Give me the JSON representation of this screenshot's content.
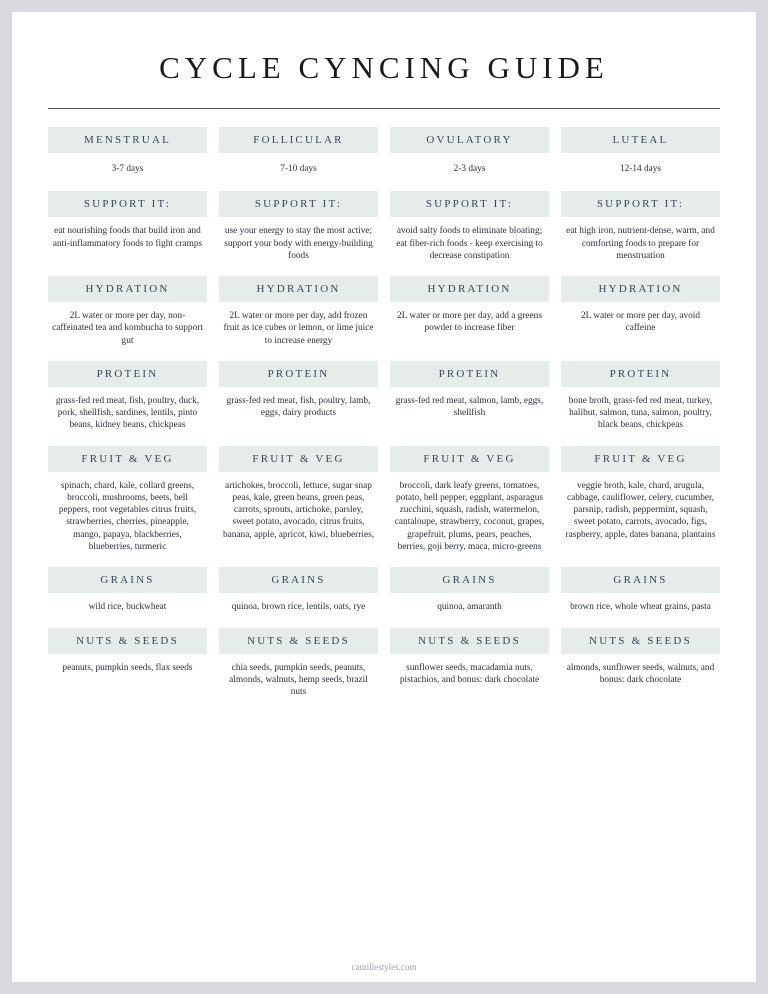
{
  "title": "CYCLE CYNCING GUIDE",
  "footer": "camillestyles.com",
  "phases": [
    "MENSTRUAL",
    "FOLLICULAR",
    "OVULATORY",
    "LUTEAL"
  ],
  "days": [
    "3-7 days",
    "7-10 days",
    "2-3 days",
    "12-14 days"
  ],
  "rows": [
    {
      "label": "SUPPORT IT:",
      "cells": [
        "eat nourishing foods that build iron and anti-inflammatory foods to fight cramps",
        "use your energy to stay the most active; support your body with energy-building foods",
        "avoid salty foods to eliminate bloating; eat fiber-rich foods - keep exercising to decrease constipation",
        "eat high iron, nutrient-dense, warm, and comforting foods to prepare for menstruation"
      ]
    },
    {
      "label": "HYDRATION",
      "cells": [
        "2L water or more per day, non-caffeinated tea and kombucha to support gut",
        "2L water or more per day, add frozen fruit as ice cubes or lemon, or lime juice to increase energy",
        "2L water or more per day, add a greens powder to increase fiber",
        "2L water or more per day, avoid caffeine"
      ]
    },
    {
      "label": "PROTEIN",
      "cells": [
        "grass-fed red meat, fish, poultry, duck, pork, shellfish, sardines, lentils, pinto beans, kidney beans, chickpeas",
        "grass-fed red meat, fish, poultry, lamb, eggs, dairy products",
        "grass-fed red meat, salmon, lamb, eggs, shellfish",
        "bone broth, grass-fed red meat, turkey, halibut, salmon, tuna, salmon, poultry, black beans, chickpeas"
      ]
    },
    {
      "label": "FRUIT & VEG",
      "cells": [
        "spinach, chard, kale, collard greens, broccoli, mushrooms, beets, bell peppers, root vegetables citrus fruits, strawberries, cherries, pineapple, mango, papaya, blackberries, blueberries, turmeric",
        "artichokes, broccoli, lettuce, sugar snap peas, kale, green beans, green peas, carrots, sprouts, artichoke, parsley, sweet potato, avocado, citrus fruits, banana, apple, apricot, kiwi, blueberries,",
        "broccoli, dark leafy greens, tomatoes, potato, bell pepper, eggplant, asparagus zucchini, squash, radish, watermelon, cantaloupe, strawberry, coconut, grapes, grapefruit, plums, pears, peaches, berries, goji berry, maca, micro-greens",
        "veggie broth, kale, chard, arugula, cabbage, cauliflower, celery, cucumber, parsnip, radish, peppermint, squash, sweet potato, carrots, avocado, figs, raspberry, apple, dates banana, plantains"
      ]
    },
    {
      "label": "GRAINS",
      "cells": [
        "wild rice, buckwheat",
        "quinoa, brown rice, lentils, oats, rye",
        "quinoa, amaranth",
        "brown rice, whole wheat grains, pasta"
      ]
    },
    {
      "label": "NUTS & SEEDS",
      "cells": [
        "peanuts, pumpkin seeds, flax seeds",
        "chia seeds, pumpkin seeds, peanuts, almonds, walnuts, hemp seeds, brazil nuts",
        "sunflower seeds, macadamia nuts, pistachios, and bonus: dark chocolate",
        "almonds, sunflower seeds, walnuts, and bonus: dark chocolate"
      ]
    }
  ],
  "colors": {
    "page_bg": "#ffffff",
    "outer_bg": "#d9d9df",
    "header_bg": "#e5ecea",
    "text": "#2a2f35",
    "header_text": "#3a4552"
  }
}
